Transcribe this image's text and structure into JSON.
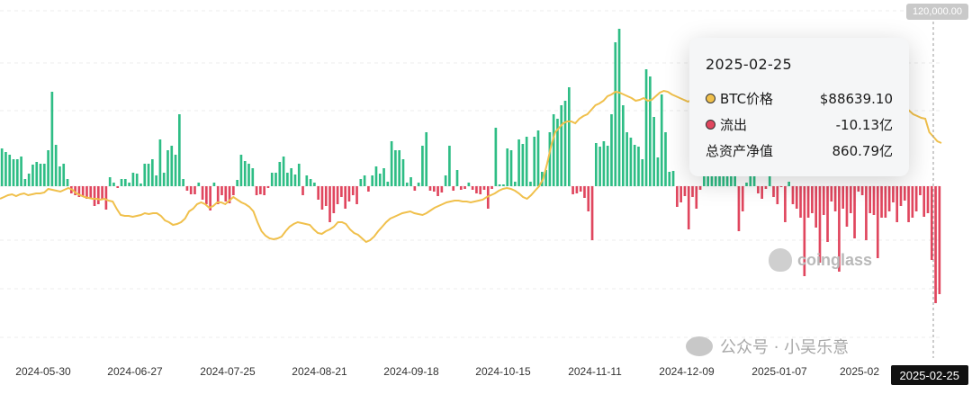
{
  "chart_data": {
    "type": "bar",
    "y_axis_tag": "120,000.00",
    "x_ticks": [
      "2024-05-30",
      "2024-06-27",
      "2024-07-25",
      "2024-08-21",
      "2024-09-18",
      "2024-10-15",
      "2024-11-11",
      "2024-12-09",
      "2025-01-07",
      "2025-02"
    ],
    "crosshair_x_label": "2025-02-25",
    "flow_series": [
      42,
      38,
      35,
      30,
      30,
      33,
      8,
      14,
      24,
      27,
      25,
      25,
      40,
      105,
      46,
      22,
      25,
      8,
      -8,
      -10,
      -12,
      -12,
      -14,
      -14,
      -22,
      -20,
      -15,
      -26,
      10,
      4,
      -2,
      8,
      8,
      4,
      15,
      14,
      3,
      25,
      25,
      30,
      12,
      52,
      15,
      40,
      45,
      35,
      80,
      8,
      -5,
      -9,
      -9,
      4,
      -15,
      -20,
      -27,
      4,
      -20,
      -10,
      -17,
      -19,
      -10,
      7,
      35,
      28,
      25,
      20,
      -10,
      -9,
      -10,
      -2,
      15,
      15,
      27,
      33,
      15,
      20,
      13,
      25,
      -10,
      12,
      8,
      4,
      -15,
      -26,
      -22,
      -40,
      -30,
      -20,
      -12,
      -25,
      -17,
      -10,
      -20,
      8,
      12,
      -6,
      12,
      22,
      14,
      20,
      5,
      50,
      40,
      40,
      30,
      4,
      10,
      -5,
      4,
      45,
      60,
      -5,
      -6,
      -11,
      -7,
      12,
      45,
      -5,
      18,
      -4,
      -3,
      4,
      -4,
      -8,
      -9,
      -4,
      -25,
      -3,
      65,
      2,
      2,
      42,
      40,
      5,
      52,
      47,
      55,
      5,
      55,
      62,
      16,
      18,
      60,
      80,
      75,
      90,
      95,
      110,
      -9,
      -8,
      -6,
      -13,
      -28,
      -60,
      48,
      44,
      50,
      45,
      80,
      160,
      175,
      90,
      60,
      54,
      46,
      44,
      30,
      130,
      122,
      77,
      32,
      102,
      60,
      16,
      17,
      -23,
      -18,
      -11,
      -48,
      -12,
      -25,
      -4,
      105,
      15,
      110,
      14,
      80,
      110,
      100,
      105,
      106,
      -50,
      -28,
      4,
      80,
      114,
      -8,
      -14,
      -3,
      30,
      -12,
      -20,
      -1,
      -40,
      5,
      -20,
      -25,
      -35,
      -100,
      -35,
      -30,
      -46,
      -85,
      -32,
      -62,
      -17,
      -28,
      -95,
      -25,
      -45,
      -30,
      -58,
      -6,
      -10,
      -60,
      -30,
      -32,
      -80,
      -35,
      -35,
      -28,
      -18,
      -40,
      -22,
      -16,
      -40,
      -35,
      -28,
      -10,
      -34,
      -30,
      -82,
      -130,
      -120
    ],
    "btc_price": [
      -14,
      -12,
      -10,
      -9,
      -11,
      -9,
      -8,
      -10,
      -9,
      -8,
      -8,
      -7,
      -3,
      -4,
      -5,
      -6,
      -4,
      -2,
      -4,
      -8,
      -10,
      -12,
      -13,
      -14,
      -14,
      -15,
      -14,
      -16,
      -17,
      -25,
      -32,
      -33,
      -33,
      -34,
      -33,
      -32,
      -30,
      -31,
      -30,
      -30,
      -33,
      -38,
      -40,
      -43,
      -42,
      -40,
      -36,
      -28,
      -25,
      -20,
      -18,
      -20,
      -24,
      -22,
      -18,
      -18,
      -20,
      -16,
      -12,
      -15,
      -18,
      -20,
      -23,
      -28,
      -40,
      -50,
      -55,
      -58,
      -59,
      -58,
      -56,
      -50,
      -45,
      -42,
      -40,
      -41,
      -42,
      -43,
      -48,
      -52,
      -53,
      -50,
      -48,
      -45,
      -40,
      -40,
      -42,
      -48,
      -52,
      -54,
      -58,
      -62,
      -60,
      -56,
      -50,
      -45,
      -40,
      -36,
      -34,
      -32,
      -30,
      -29,
      -28,
      -30,
      -31,
      -32,
      -30,
      -27,
      -24,
      -22,
      -20,
      -18,
      -17,
      -16,
      -16,
      -17,
      -17,
      -18,
      -17,
      -16,
      -15,
      -12,
      -10,
      -8,
      -5,
      -3,
      -2,
      -3,
      -5,
      -8,
      -12,
      -14,
      -10,
      -5,
      0,
      8,
      25,
      45,
      60,
      65,
      70,
      72,
      72,
      70,
      75,
      78,
      80,
      85,
      90,
      92,
      95,
      100,
      102,
      105,
      104,
      102,
      100,
      98,
      95,
      96,
      98,
      95,
      96,
      100,
      104,
      106,
      105,
      102,
      100,
      98,
      96,
      94,
      96,
      98,
      100,
      105,
      108,
      110,
      108,
      104,
      100,
      98,
      96,
      98,
      100,
      102,
      104,
      100,
      96,
      95,
      96,
      98,
      102,
      105,
      108,
      104,
      100,
      98,
      96,
      95,
      96,
      98,
      100,
      102,
      104,
      105,
      106,
      102,
      100,
      96,
      90,
      88,
      85,
      82,
      78,
      76,
      75,
      74,
      73,
      76,
      78,
      80,
      82,
      84,
      86,
      88,
      84,
      80,
      78,
      76,
      75,
      60,
      55,
      50,
      48
    ],
    "colors": {
      "inflow": "#2ebd85",
      "outflow": "#e0465e",
      "price_line": "#f0c04c"
    }
  },
  "tooltip": {
    "date": "2025-02-25",
    "rows": [
      {
        "label": "BTC价格",
        "value": "$88639.10",
        "dot_color": "#f0c04c"
      },
      {
        "label": "流出",
        "value": "-10.13亿",
        "dot_color": "#e0465e"
      },
      {
        "label": "总资产净值",
        "value": "860.79亿"
      }
    ]
  },
  "brand": {
    "logo_text": "coinglass",
    "watermark": "公众号 · 小吴乐意"
  }
}
